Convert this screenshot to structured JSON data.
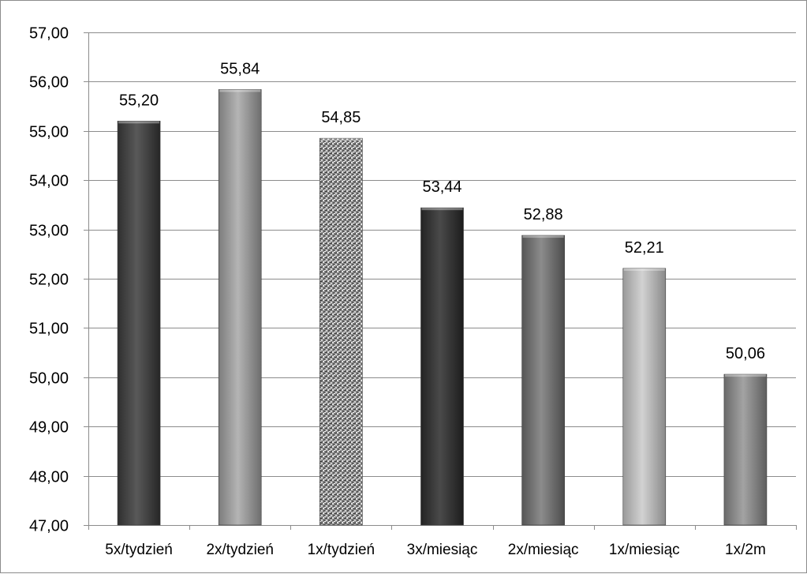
{
  "chart_data": {
    "type": "bar",
    "title": "",
    "xlabel": "",
    "ylabel": "",
    "categories": [
      "5x/tydzień",
      "2x/tydzień",
      "1x/tydzień",
      "3x/miesiąc",
      "2x/miesiąc",
      "1x/miesiąc",
      "1x/2m"
    ],
    "values": [
      55.2,
      55.84,
      54.85,
      53.44,
      52.88,
      52.21,
      50.06
    ],
    "value_labels": [
      "55,20",
      "55,84",
      "54,85",
      "53,44",
      "52,88",
      "52,21",
      "50,06"
    ],
    "ylim": [
      47,
      57
    ],
    "yticks": [
      47,
      48,
      49,
      50,
      51,
      52,
      53,
      54,
      55,
      56,
      57
    ],
    "ytick_labels": [
      "47,00",
      "48,00",
      "49,00",
      "50,00",
      "51,00",
      "52,00",
      "53,00",
      "54,00",
      "55,00",
      "56,00",
      "57,00"
    ],
    "grid": true,
    "legend": "none",
    "bar_fills": [
      "dark",
      "light",
      "speckled",
      "darkest",
      "medium",
      "lightest",
      "medium-light"
    ],
    "colors": {
      "gridline": "#8c8c8c",
      "axis": "#8c8c8c",
      "border": "#8c8c8c"
    }
  }
}
